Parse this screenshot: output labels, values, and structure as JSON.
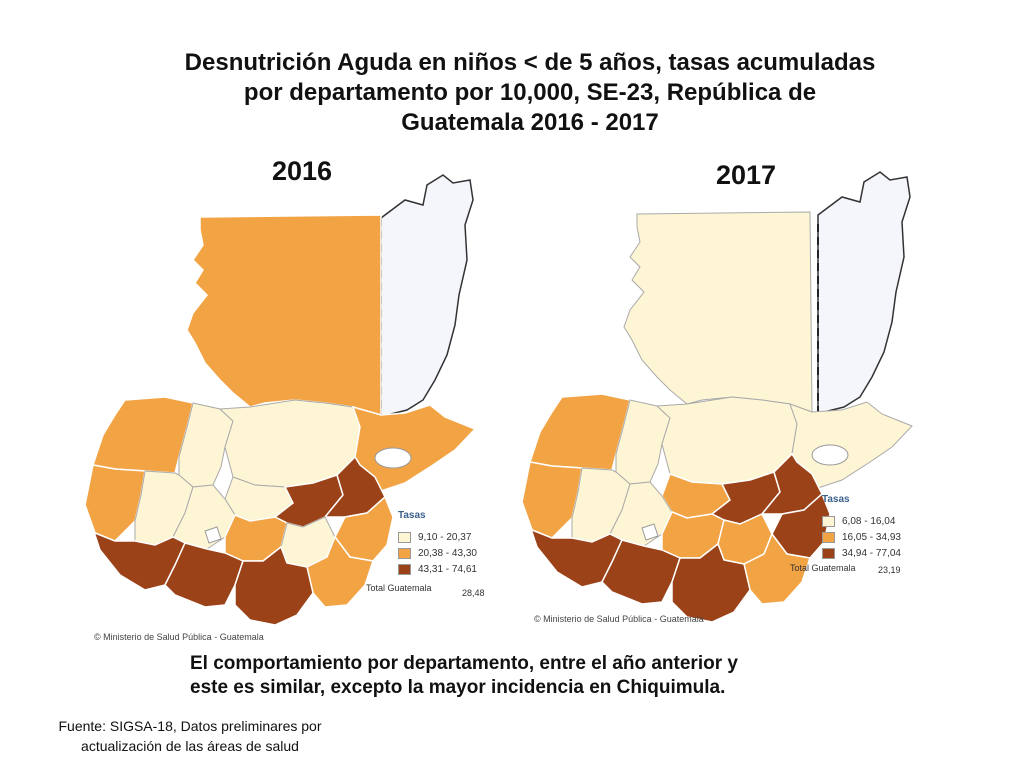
{
  "title": "Desnutrición Aguda en niños < de 5 años, tasas acumuladas por departamento por 10,000, SE-23, República de Guatemala  2016  -  2017",
  "maps": [
    {
      "year": "2016",
      "legend_title": "Tasas",
      "legend": [
        {
          "label": "9,10 - 20,37",
          "color": "#fdf5d4"
        },
        {
          "label": "20,38 - 43,30",
          "color": "#f2a344"
        },
        {
          "label": "43,31 - 74,61",
          "color": "#9b4218"
        }
      ],
      "total_label": "Total Guatemala",
      "total_value": "28,48",
      "copyright": "© Ministerio de Salud Pública - Guatemala"
    },
    {
      "year": "2017",
      "legend_title": "Tasas",
      "legend": [
        {
          "label": "6,08 - 16,04",
          "color": "#fdf5d4"
        },
        {
          "label": "16,05 - 34,93",
          "color": "#f2a344"
        },
        {
          "label": "34,94 - 77,04",
          "color": "#9b4218"
        }
      ],
      "total_label": "Total Guatemala",
      "total_value": "23,19",
      "copyright": "© Ministerio de Salud Pública - Guatemala"
    }
  ],
  "note": "El comportamiento por departamento, entre el año anterior y este es similar, excepto la mayor incidencia en Chiquimula.",
  "source": "Fuente: SIGSA-18, Datos preliminares por actualización de las áreas de salud",
  "colors": {
    "low": "#fdf5d4",
    "mid": "#f2a344",
    "high": "#9b4218",
    "belize": "#f4f6fb"
  }
}
